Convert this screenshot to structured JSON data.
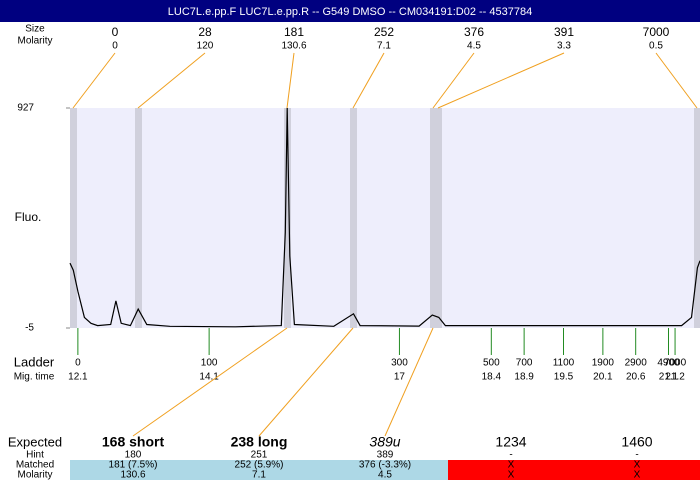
{
  "header": {
    "title": "LUC7L.e.pp.F  LUC7L.e.pp.R -- G549 DMSO -- CM034191:D02 -- 4537784"
  },
  "peaks": {
    "size_label": "Size",
    "molarity_label": "Molarity",
    "sizes": [
      0,
      28,
      181,
      252,
      376,
      391,
      7000
    ],
    "molarities": [
      0,
      120,
      130.6,
      7.1,
      4.5,
      3.3,
      0.5
    ]
  },
  "chart_data": {
    "type": "line",
    "y_label": "Fluo.",
    "color": "#000000",
    "x": [
      11.98,
      12.03,
      12.1,
      12.2,
      12.3,
      12.4,
      12.6,
      12.68,
      12.76,
      12.9,
      13.02,
      13.15,
      13.5,
      14.5,
      15.2,
      15.26,
      15.29,
      15.33,
      15.4,
      16.0,
      16.3,
      16.4,
      17.3,
      17.5,
      17.6,
      17.7,
      21.3,
      21.45,
      21.54,
      21.58
    ],
    "values": [
      270,
      240,
      150,
      40,
      15,
      5,
      10,
      110,
      15,
      5,
      75,
      10,
      2,
      0,
      5,
      400,
      927,
      300,
      10,
      2,
      55,
      5,
      3,
      50,
      40,
      5,
      5,
      40,
      250,
      280
    ],
    "xlim": [
      11.98,
      21.58
    ],
    "ylim": [
      -5,
      927
    ],
    "yticks": [
      -5,
      927
    ],
    "ladder_label": "Ladder",
    "xtick_title": "Mig. time",
    "ladder_sizes": [
      0,
      100,
      300,
      500,
      700,
      1100,
      1900,
      2900,
      4900,
      7000
    ],
    "xticks": [
      12.1,
      14.1,
      17,
      18.4,
      18.9,
      19.5,
      20.1,
      20.6,
      21.1,
      21.2
    ]
  },
  "table": {
    "row_labels": [
      "Expected",
      "Hint",
      "Matched",
      "Molarity"
    ],
    "expected": [
      "168 short",
      "238 long",
      "389u",
      "1234",
      "1460"
    ],
    "hint": [
      180,
      251,
      389,
      "-",
      "-"
    ],
    "matched": [
      "181 (7.5%)",
      "252 (5.9%)",
      "376 (-3.3%)",
      "X",
      "X"
    ],
    "molarity": [
      130.6,
      7.1,
      4.5,
      "X",
      "X"
    ],
    "cell_colors": [
      "#add8e6",
      "#add8e6",
      "#add8e6",
      "#ff0000",
      "#ff0000"
    ]
  }
}
